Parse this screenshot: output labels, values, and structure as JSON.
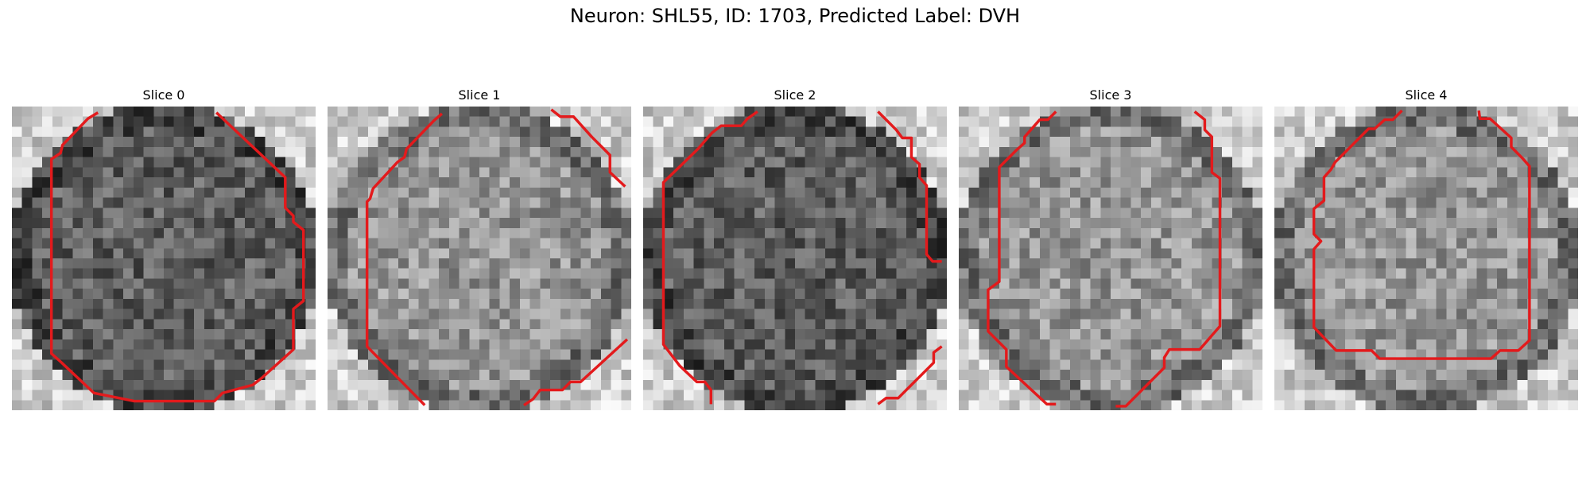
{
  "figure": {
    "title": "Neuron: SHL55, ID: 1703, Predicted Label: DVH",
    "contour_color": "#e31a1c",
    "colormap": "grayscale"
  },
  "panels": [
    {
      "title": "Slice 0",
      "background": "light",
      "roi_darker": true
    },
    {
      "title": "Slice 1",
      "background": "light",
      "roi_darker": false
    },
    {
      "title": "Slice 2",
      "background": "light",
      "roi_darker": true
    },
    {
      "title": "Slice 3",
      "background": "light",
      "roi_darker": false
    },
    {
      "title": "Slice 4",
      "background": "light",
      "roi_darker": false
    }
  ]
}
